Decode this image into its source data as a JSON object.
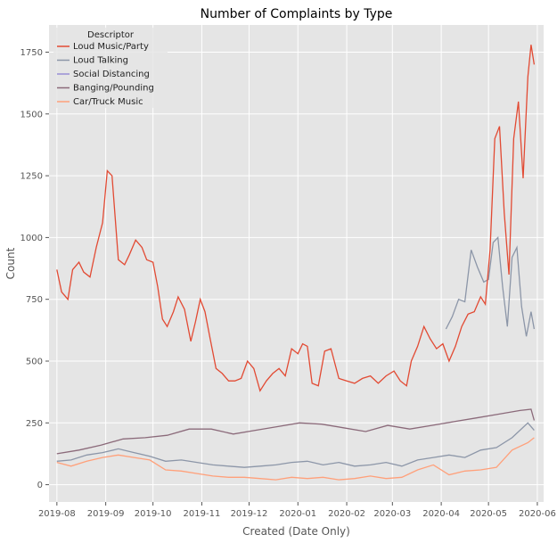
{
  "chart_data": {
    "type": "line",
    "title": "Number of Complaints by Type",
    "xlabel": "Created (Date Only)",
    "ylabel": "Count",
    "x_ticks": [
      "2019-08",
      "2019-09",
      "2019-10",
      "2019-11",
      "2019-12",
      "2020-01",
      "2020-02",
      "2020-03",
      "2020-04",
      "2020-05",
      "2020-06"
    ],
    "y_ticks": [
      0,
      250,
      500,
      750,
      1000,
      1250,
      1500,
      1750
    ],
    "xlim": [
      "2019-07-27",
      "2020-06-05"
    ],
    "ylim": [
      -70,
      1860
    ],
    "grid": true,
    "legend": {
      "title": "Descriptor",
      "placement": "top-left"
    },
    "background_color": "#E5E5E5",
    "series": [
      {
        "name": "Loud Music/Party",
        "color": "#E24A33",
        "points": [
          [
            "2019-08-01",
            870
          ],
          [
            "2019-08-04",
            780
          ],
          [
            "2019-08-08",
            750
          ],
          [
            "2019-08-11",
            870
          ],
          [
            "2019-08-15",
            900
          ],
          [
            "2019-08-18",
            860
          ],
          [
            "2019-08-22",
            840
          ],
          [
            "2019-08-26",
            960
          ],
          [
            "2019-08-30",
            1060
          ],
          [
            "2019-09-02",
            1270
          ],
          [
            "2019-09-05",
            1250
          ],
          [
            "2019-09-09",
            910
          ],
          [
            "2019-09-13",
            890
          ],
          [
            "2019-09-16",
            930
          ],
          [
            "2019-09-20",
            990
          ],
          [
            "2019-09-24",
            960
          ],
          [
            "2019-09-27",
            910
          ],
          [
            "2019-10-01",
            900
          ],
          [
            "2019-10-04",
            800
          ],
          [
            "2019-10-07",
            670
          ],
          [
            "2019-10-10",
            640
          ],
          [
            "2019-10-14",
            700
          ],
          [
            "2019-10-17",
            760
          ],
          [
            "2019-10-21",
            710
          ],
          [
            "2019-10-25",
            580
          ],
          [
            "2019-10-28",
            660
          ],
          [
            "2019-10-31",
            750
          ],
          [
            "2019-11-03",
            700
          ],
          [
            "2019-11-06",
            600
          ],
          [
            "2019-11-10",
            470
          ],
          [
            "2019-11-14",
            450
          ],
          [
            "2019-11-18",
            420
          ],
          [
            "2019-11-22",
            420
          ],
          [
            "2019-11-26",
            430
          ],
          [
            "2019-11-30",
            500
          ],
          [
            "2019-12-04",
            470
          ],
          [
            "2019-12-08",
            380
          ],
          [
            "2019-12-12",
            420
          ],
          [
            "2019-12-16",
            450
          ],
          [
            "2019-12-20",
            470
          ],
          [
            "2019-12-24",
            440
          ],
          [
            "2019-12-28",
            550
          ],
          [
            "2020-01-01",
            530
          ],
          [
            "2020-01-04",
            570
          ],
          [
            "2020-01-07",
            560
          ],
          [
            "2020-01-10",
            410
          ],
          [
            "2020-01-14",
            400
          ],
          [
            "2020-01-18",
            540
          ],
          [
            "2020-01-22",
            550
          ],
          [
            "2020-01-27",
            430
          ],
          [
            "2020-02-01",
            420
          ],
          [
            "2020-02-06",
            410
          ],
          [
            "2020-02-11",
            430
          ],
          [
            "2020-02-16",
            440
          ],
          [
            "2020-02-21",
            410
          ],
          [
            "2020-02-26",
            440
          ],
          [
            "2020-03-02",
            460
          ],
          [
            "2020-03-06",
            420
          ],
          [
            "2020-03-10",
            400
          ],
          [
            "2020-03-13",
            500
          ],
          [
            "2020-03-17",
            560
          ],
          [
            "2020-03-21",
            640
          ],
          [
            "2020-03-25",
            590
          ],
          [
            "2020-03-29",
            550
          ],
          [
            "2020-04-02",
            570
          ],
          [
            "2020-04-06",
            500
          ],
          [
            "2020-04-10",
            560
          ],
          [
            "2020-04-14",
            640
          ],
          [
            "2020-04-18",
            690
          ],
          [
            "2020-04-22",
            700
          ],
          [
            "2020-04-26",
            760
          ],
          [
            "2020-04-29",
            730
          ],
          [
            "2020-05-02",
            950
          ],
          [
            "2020-05-05",
            1400
          ],
          [
            "2020-05-08",
            1450
          ],
          [
            "2020-05-11",
            1100
          ],
          [
            "2020-05-14",
            850
          ],
          [
            "2020-05-17",
            1400
          ],
          [
            "2020-05-20",
            1550
          ],
          [
            "2020-05-23",
            1240
          ],
          [
            "2020-05-26",
            1650
          ],
          [
            "2020-05-28",
            1780
          ],
          [
            "2020-05-30",
            1700
          ]
        ]
      },
      {
        "name": "Loud Talking",
        "color": "#8EBA42",
        "points": []
      },
      {
        "name": "Social Distancing",
        "color": "#988ED5",
        "points": [
          [
            "2020-04-04",
            630
          ],
          [
            "2020-04-08",
            680
          ],
          [
            "2020-04-12",
            750
          ],
          [
            "2020-04-16",
            740
          ],
          [
            "2020-04-20",
            950
          ],
          [
            "2020-04-24",
            880
          ],
          [
            "2020-04-28",
            820
          ],
          [
            "2020-05-01",
            830
          ],
          [
            "2020-05-04",
            980
          ],
          [
            "2020-05-07",
            1000
          ],
          [
            "2020-05-10",
            800
          ],
          [
            "2020-05-13",
            640
          ],
          [
            "2020-05-16",
            920
          ],
          [
            "2020-05-19",
            960
          ],
          [
            "2020-05-22",
            720
          ],
          [
            "2020-05-25",
            600
          ],
          [
            "2020-05-28",
            700
          ],
          [
            "2020-05-30",
            630
          ]
        ]
      },
      {
        "name": "Banging/Pounding",
        "color": "#777777",
        "points": [
          [
            "2019-08-01",
            125
          ],
          [
            "2019-08-15",
            140
          ],
          [
            "2019-08-29",
            160
          ],
          [
            "2019-09-12",
            185
          ],
          [
            "2019-09-26",
            190
          ],
          [
            "2019-10-10",
            200
          ],
          [
            "2019-10-24",
            225
          ],
          [
            "2019-11-07",
            225
          ],
          [
            "2019-11-21",
            205
          ],
          [
            "2019-12-05",
            220
          ],
          [
            "2019-12-19",
            235
          ],
          [
            "2020-01-02",
            250
          ],
          [
            "2020-01-16",
            245
          ],
          [
            "2020-01-30",
            230
          ],
          [
            "2020-02-13",
            215
          ],
          [
            "2020-02-27",
            240
          ],
          [
            "2020-03-12",
            225
          ],
          [
            "2020-03-26",
            240
          ],
          [
            "2020-04-09",
            255
          ],
          [
            "2020-04-23",
            270
          ],
          [
            "2020-05-07",
            285
          ],
          [
            "2020-05-21",
            300
          ],
          [
            "2020-05-28",
            305
          ],
          [
            "2020-05-30",
            260
          ]
        ]
      },
      {
        "name": "Car/Truck Music",
        "color": "#FBC15E",
        "points": [
          [
            "2019-08-01",
            95
          ],
          [
            "2019-08-10",
            100
          ],
          [
            "2019-08-20",
            120
          ],
          [
            "2019-08-30",
            130
          ],
          [
            "2019-09-09",
            145
          ],
          [
            "2019-09-19",
            130
          ],
          [
            "2019-09-29",
            115
          ],
          [
            "2019-10-09",
            95
          ],
          [
            "2019-10-19",
            100
          ],
          [
            "2019-10-29",
            90
          ],
          [
            "2019-11-08",
            80
          ],
          [
            "2019-11-18",
            75
          ],
          [
            "2019-11-28",
            70
          ],
          [
            "2019-12-08",
            75
          ],
          [
            "2019-12-18",
            80
          ],
          [
            "2019-12-28",
            90
          ],
          [
            "2020-01-07",
            95
          ],
          [
            "2020-01-17",
            80
          ],
          [
            "2020-01-27",
            90
          ],
          [
            "2020-02-06",
            75
          ],
          [
            "2020-02-16",
            80
          ],
          [
            "2020-02-26",
            90
          ],
          [
            "2020-03-07",
            75
          ],
          [
            "2020-03-17",
            100
          ],
          [
            "2020-03-27",
            110
          ],
          [
            "2020-04-06",
            120
          ],
          [
            "2020-04-16",
            110
          ],
          [
            "2020-04-26",
            140
          ],
          [
            "2020-05-06",
            150
          ],
          [
            "2020-05-16",
            190
          ],
          [
            "2020-05-26",
            250
          ],
          [
            "2020-05-30",
            220
          ]
        ]
      },
      {
        "name": "_car_truck_orange",
        "color": "#FFA07A",
        "points": [
          [
            "2019-08-01",
            90
          ],
          [
            "2019-08-10",
            75
          ],
          [
            "2019-08-20",
            95
          ],
          [
            "2019-08-30",
            110
          ],
          [
            "2019-09-09",
            120
          ],
          [
            "2019-09-19",
            110
          ],
          [
            "2019-09-29",
            100
          ],
          [
            "2019-10-09",
            60
          ],
          [
            "2019-10-19",
            55
          ],
          [
            "2019-10-29",
            45
          ],
          [
            "2019-11-08",
            35
          ],
          [
            "2019-11-18",
            30
          ],
          [
            "2019-11-28",
            30
          ],
          [
            "2019-12-08",
            25
          ],
          [
            "2019-12-18",
            20
          ],
          [
            "2019-12-28",
            30
          ],
          [
            "2020-01-07",
            25
          ],
          [
            "2020-01-17",
            30
          ],
          [
            "2020-01-27",
            20
          ],
          [
            "2020-02-06",
            25
          ],
          [
            "2020-02-16",
            35
          ],
          [
            "2020-02-26",
            25
          ],
          [
            "2020-03-07",
            30
          ],
          [
            "2020-03-17",
            60
          ],
          [
            "2020-03-27",
            80
          ],
          [
            "2020-04-06",
            40
          ],
          [
            "2020-04-16",
            55
          ],
          [
            "2020-04-26",
            60
          ],
          [
            "2020-05-06",
            70
          ],
          [
            "2020-05-16",
            140
          ],
          [
            "2020-05-26",
            170
          ],
          [
            "2020-05-30",
            190
          ]
        ]
      }
    ],
    "legend_entries": [
      {
        "label": "Loud Music/Party",
        "color": "#E24A33"
      },
      {
        "label": "Loud Talking",
        "color": "#8C96A8"
      },
      {
        "label": "Social Distancing",
        "color": "#988ED5"
      },
      {
        "label": "Banging/Pounding",
        "color": "#8B6A7A"
      },
      {
        "label": "Car/Truck Music",
        "color": "#FFA07A"
      }
    ]
  }
}
